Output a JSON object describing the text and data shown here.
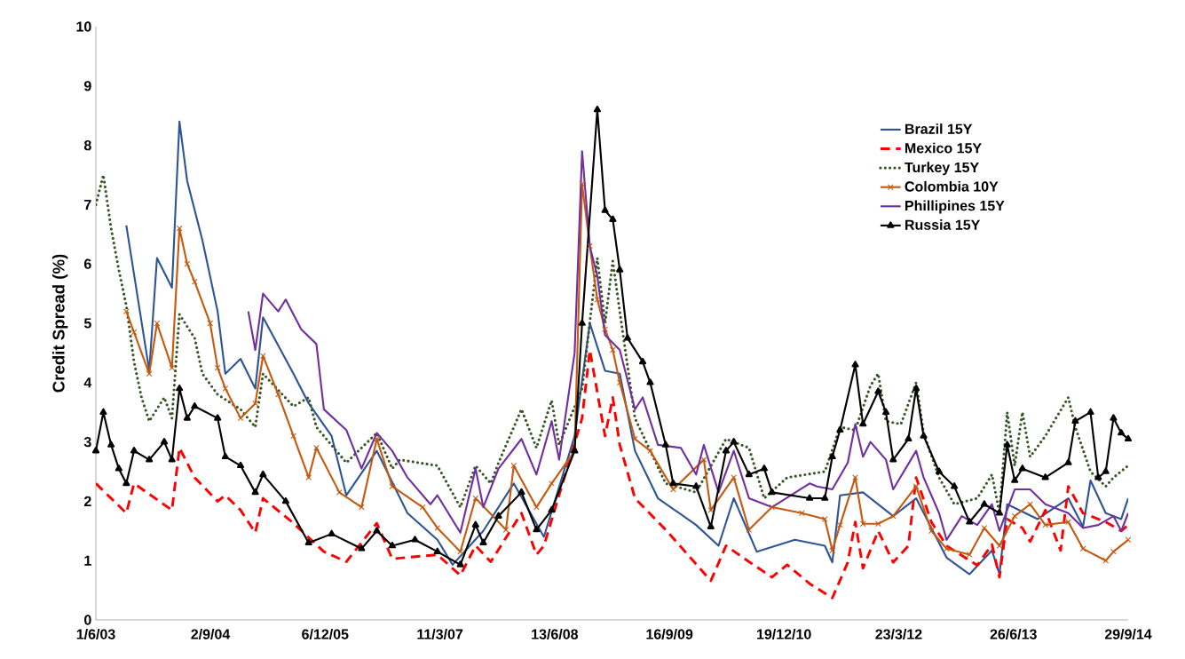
{
  "chart_data": {
    "type": "line",
    "ylabel": "Credit Spread (%)",
    "xlim": [
      "2003-06-01",
      "2014-09-29"
    ],
    "xticks": [
      {
        "value": "2003-06-01",
        "label": "1/6/03"
      },
      {
        "value": "2004-09-02",
        "label": "2/9/04"
      },
      {
        "value": "2005-12-06",
        "label": "6/12/05"
      },
      {
        "value": "2007-03-11",
        "label": "11/3/07"
      },
      {
        "value": "2008-06-13",
        "label": "13/6/08"
      },
      {
        "value": "2009-09-16",
        "label": "16/9/09"
      },
      {
        "value": "2010-12-19",
        "label": "19/12/10"
      },
      {
        "value": "2012-03-23",
        "label": "23/3/12"
      },
      {
        "value": "2013-06-26",
        "label": "26/6/13"
      },
      {
        "value": "2014-09-29",
        "label": "29/9/14"
      }
    ],
    "ylim": [
      0,
      10
    ],
    "yticks": [
      0,
      1,
      2,
      3,
      4,
      5,
      6,
      7,
      8,
      9,
      10
    ],
    "legend": "top right",
    "grid": false,
    "series": [
      {
        "name": "Brazil 15Y",
        "color": "#2f5597",
        "line_style": "solid",
        "marker": "none",
        "x": [
          "2003-10",
          "2004-01",
          "2004-02",
          "2004-04",
          "2004-05",
          "2004-06",
          "2004-08",
          "2004-10",
          "2004-11",
          "2005-01",
          "2005-03",
          "2005-04",
          "2005-08",
          "2005-10",
          "2006-01",
          "2006-03",
          "2006-07",
          "2006-11",
          "2007-03",
          "2007-05",
          "2007-09",
          "2008-01",
          "2008-05",
          "2008-09",
          "2008-11",
          "2009-01",
          "2009-03",
          "2009-05",
          "2009-08",
          "2010-01",
          "2010-04",
          "2010-06",
          "2010-09",
          "2011-02",
          "2011-06",
          "2011-07",
          "2011-08",
          "2011-11",
          "2012-03",
          "2012-06",
          "2012-10",
          "2013-01",
          "2013-04",
          "2013-05",
          "2013-06",
          "2013-10",
          "2014-02",
          "2014-04",
          "2014-05",
          "2014-07",
          "2014-09",
          "2014-09-29"
        ],
        "values": [
          6.65,
          4.2,
          6.1,
          5.6,
          8.4,
          7.4,
          6.4,
          5.2,
          4.15,
          4.4,
          3.9,
          5.1,
          4.15,
          3.65,
          3.1,
          2.1,
          2.85,
          1.8,
          1.35,
          0.93,
          1.5,
          2.3,
          1.4,
          3.1,
          5.0,
          4.2,
          4.15,
          2.85,
          2.05,
          1.6,
          1.25,
          2.05,
          1.15,
          1.35,
          1.25,
          0.97,
          2.1,
          2.15,
          1.75,
          2.05,
          1.05,
          0.77,
          1.17,
          0.77,
          1.95,
          1.7,
          2.05,
          1.57,
          2.35,
          1.8,
          1.7,
          2.05
        ]
      },
      {
        "name": "Mexico 15Y",
        "color": "#ff0000",
        "line_style": "dashed",
        "marker": "none",
        "x": [
          "2003-06",
          "2003-10",
          "2003-11",
          "2004-04",
          "2004-05",
          "2004-07",
          "2004-10",
          "2004-11",
          "2005-01",
          "2005-03",
          "2005-04",
          "2005-08",
          "2005-12",
          "2006-03",
          "2006-07",
          "2006-09",
          "2007-03",
          "2007-06",
          "2007-08",
          "2007-10",
          "2008-02",
          "2008-04",
          "2008-05",
          "2008-10",
          "2008-11",
          "2009-01",
          "2009-02",
          "2009-03",
          "2009-05",
          "2009-09",
          "2010-03",
          "2010-05",
          "2010-08",
          "2010-11",
          "2011-01",
          "2011-04",
          "2011-06",
          "2011-07",
          "2011-09",
          "2011-10",
          "2011-11",
          "2012-01",
          "2012-03",
          "2012-05",
          "2012-06",
          "2012-08",
          "2012-10",
          "2013-02",
          "2013-04",
          "2013-05",
          "2013-06",
          "2013-08",
          "2013-09",
          "2013-11",
          "2014-01",
          "2014-02",
          "2014-04",
          "2014-07",
          "2014-09",
          "2014-09-29"
        ],
        "values": [
          2.3,
          1.8,
          2.3,
          1.85,
          2.9,
          2.4,
          2.0,
          2.1,
          1.85,
          1.47,
          2.05,
          1.63,
          1.15,
          0.98,
          1.63,
          1.03,
          1.1,
          0.75,
          1.25,
          0.98,
          1.8,
          1.1,
          1.25,
          3.4,
          4.55,
          3.1,
          3.75,
          2.95,
          2.05,
          1.52,
          0.66,
          1.25,
          0.98,
          0.72,
          0.93,
          0.61,
          0.45,
          0.37,
          0.97,
          1.65,
          0.87,
          1.5,
          0.97,
          1.25,
          2.4,
          1.65,
          1.25,
          0.92,
          1.27,
          0.72,
          1.7,
          1.55,
          1.32,
          1.85,
          1.17,
          2.25,
          1.8,
          1.65,
          1.5,
          1.6
        ]
      },
      {
        "name": "Turkey 15Y",
        "color": "#375623",
        "line_style": "dotted",
        "marker": "none",
        "x": [
          "2003-06",
          "2003-07",
          "2003-08",
          "2003-09",
          "2003-10",
          "2003-11",
          "2003-12",
          "2004-01",
          "2004-03",
          "2004-04",
          "2004-05",
          "2004-07",
          "2004-08",
          "2004-10",
          "2005-01",
          "2005-03",
          "2005-04",
          "2005-08",
          "2005-10",
          "2005-11",
          "2006-03",
          "2006-07",
          "2006-09",
          "2006-10",
          "2007-03",
          "2007-06",
          "2007-08",
          "2007-10",
          "2007-11",
          "2008-02",
          "2008-04",
          "2008-06",
          "2008-07",
          "2008-10",
          "2008-12",
          "2009-01",
          "2009-02",
          "2009-03",
          "2009-05",
          "2009-09",
          "2010-01",
          "2010-05",
          "2010-08",
          "2010-10",
          "2011-01",
          "2011-06",
          "2011-08",
          "2011-10",
          "2011-12",
          "2012-01",
          "2012-02",
          "2012-04",
          "2012-06",
          "2012-07",
          "2012-09",
          "2012-11",
          "2013-02",
          "2013-04",
          "2013-05",
          "2013-06",
          "2013-07",
          "2013-08",
          "2013-09",
          "2013-11",
          "2014-02",
          "2014-03",
          "2014-05",
          "2014-07",
          "2014-08",
          "2014-09-29"
        ],
        "values": [
          7.0,
          7.5,
          6.6,
          5.9,
          5.3,
          4.35,
          3.75,
          3.35,
          3.75,
          3.4,
          5.15,
          4.75,
          4.15,
          3.8,
          3.55,
          3.25,
          4.15,
          3.6,
          3.75,
          3.25,
          2.65,
          3.15,
          2.55,
          2.7,
          2.6,
          1.9,
          2.6,
          2.3,
          2.65,
          3.55,
          2.9,
          3.7,
          2.95,
          3.9,
          6.1,
          5.0,
          6.05,
          5.2,
          3.4,
          2.3,
          2.15,
          3.05,
          2.9,
          2.05,
          2.4,
          2.5,
          3.25,
          3.2,
          3.95,
          4.15,
          3.35,
          3.3,
          4.0,
          3.15,
          2.4,
          1.95,
          2.05,
          2.45,
          1.8,
          3.5,
          2.6,
          3.5,
          2.75,
          3.1,
          3.75,
          3.25,
          2.5,
          2.25,
          2.4,
          2.6
        ]
      },
      {
        "name": "Colombia 10Y",
        "color": "#c55a11",
        "line_style": "solid",
        "marker": "cross",
        "x": [
          "2003-10",
          "2003-11",
          "2004-01",
          "2004-02",
          "2004-04",
          "2004-05",
          "2004-06",
          "2004-07",
          "2004-09",
          "2004-10",
          "2004-11",
          "2005-01",
          "2005-03",
          "2005-04",
          "2005-06",
          "2005-08",
          "2005-10",
          "2005-11",
          "2006-02",
          "2006-05",
          "2006-07",
          "2006-09",
          "2007-01",
          "2007-03",
          "2007-06",
          "2007-08",
          "2007-12",
          "2008-01",
          "2008-04",
          "2008-06",
          "2008-09",
          "2008-10",
          "2008-11",
          "2008-12",
          "2009-01",
          "2009-02",
          "2009-03",
          "2009-05",
          "2009-07",
          "2009-10",
          "2010-02",
          "2010-03",
          "2010-06",
          "2010-08",
          "2010-11",
          "2011-03",
          "2011-06",
          "2011-07",
          "2011-08",
          "2011-10",
          "2011-11",
          "2012-01",
          "2012-03",
          "2012-06",
          "2012-08",
          "2012-10",
          "2013-01",
          "2013-03",
          "2013-05",
          "2013-07",
          "2013-09",
          "2013-11",
          "2014-02",
          "2014-04",
          "2014-07",
          "2014-08",
          "2014-09-29"
        ],
        "values": [
          5.2,
          4.85,
          4.15,
          5.0,
          4.25,
          6.6,
          6.0,
          5.7,
          5.0,
          4.25,
          3.9,
          3.4,
          3.65,
          4.45,
          3.8,
          3.1,
          2.4,
          2.9,
          2.15,
          1.9,
          3.05,
          2.25,
          1.9,
          1.55,
          1.15,
          2.05,
          1.52,
          2.6,
          1.9,
          2.3,
          2.85,
          7.35,
          6.3,
          5.4,
          4.9,
          4.55,
          4.0,
          3.05,
          2.85,
          2.2,
          2.7,
          1.85,
          2.4,
          1.52,
          1.9,
          1.8,
          1.7,
          1.17,
          1.6,
          2.4,
          1.62,
          1.62,
          1.75,
          2.25,
          1.5,
          1.2,
          1.1,
          1.55,
          1.25,
          1.75,
          1.95,
          1.6,
          1.65,
          1.2,
          1.0,
          1.15,
          1.35
        ]
      },
      {
        "name": "Phillipines 15Y",
        "color": "#7030a0",
        "line_style": "solid",
        "marker": "none",
        "x": [
          "2005-02",
          "2005-03",
          "2005-04",
          "2005-06",
          "2005-07",
          "2005-09",
          "2005-11",
          "2005-12",
          "2006-03",
          "2006-05",
          "2006-07",
          "2006-09",
          "2006-11",
          "2007-02",
          "2007-03",
          "2007-06",
          "2007-08",
          "2007-09",
          "2007-11",
          "2008-02",
          "2008-04",
          "2008-06",
          "2008-07",
          "2008-09",
          "2008-10",
          "2008-11",
          "2008-12",
          "2009-01",
          "2009-03",
          "2009-05",
          "2009-06",
          "2009-08",
          "2009-11",
          "2010-01",
          "2010-02",
          "2010-04",
          "2010-06",
          "2010-08",
          "2010-11",
          "2011-04",
          "2011-05",
          "2011-07",
          "2011-09",
          "2011-10",
          "2011-11",
          "2011-12",
          "2012-02",
          "2012-03",
          "2012-06",
          "2012-07",
          "2012-09",
          "2012-10",
          "2012-12",
          "2013-02",
          "2013-04",
          "2013-05",
          "2013-07",
          "2013-09",
          "2013-11",
          "2014-02",
          "2014-04",
          "2014-06",
          "2014-08",
          "2014-09",
          "2014-09-29"
        ],
        "values": [
          5.2,
          4.55,
          5.5,
          5.2,
          5.4,
          4.9,
          4.65,
          3.55,
          3.2,
          2.55,
          3.15,
          2.85,
          2.4,
          1.95,
          2.1,
          1.47,
          2.55,
          1.9,
          2.55,
          3.05,
          2.45,
          3.35,
          2.7,
          4.5,
          7.9,
          6.3,
          5.8,
          4.8,
          4.55,
          3.55,
          3.75,
          2.95,
          2.9,
          2.45,
          2.95,
          2.15,
          2.85,
          2.05,
          1.9,
          2.3,
          2.25,
          2.2,
          2.65,
          3.3,
          2.75,
          3.0,
          2.7,
          2.2,
          2.85,
          2.4,
          1.8,
          1.35,
          1.75,
          1.6,
          1.95,
          1.5,
          2.2,
          2.2,
          1.95,
          1.8,
          1.55,
          1.6,
          1.75,
          1.5,
          1.8
        ]
      },
      {
        "name": "Russia 15Y",
        "color": "#000000",
        "line_style": "solid",
        "marker": "triangle",
        "x": [
          "2003-06",
          "2003-07",
          "2003-08",
          "2003-09",
          "2003-10",
          "2003-11",
          "2004-01",
          "2004-03",
          "2004-04",
          "2004-05",
          "2004-06",
          "2004-07",
          "2004-10",
          "2004-11",
          "2005-01",
          "2005-03",
          "2005-04",
          "2005-07",
          "2005-10",
          "2006-01",
          "2006-05",
          "2006-07",
          "2006-09",
          "2006-12",
          "2007-03",
          "2007-06",
          "2007-08",
          "2007-09",
          "2007-11",
          "2008-02",
          "2008-04",
          "2008-06",
          "2008-09",
          "2008-10",
          "2008-12",
          "2009-01",
          "2009-02",
          "2009-03",
          "2009-04",
          "2009-06",
          "2009-07",
          "2009-09",
          "2009-10",
          "2010-01",
          "2010-03",
          "2010-05",
          "2010-06",
          "2010-08",
          "2010-10",
          "2010-11",
          "2011-04",
          "2011-06",
          "2011-07",
          "2011-08",
          "2011-10",
          "2011-11",
          "2012-01",
          "2012-02",
          "2012-03",
          "2012-05",
          "2012-06",
          "2012-07",
          "2012-09",
          "2012-11",
          "2013-01",
          "2013-03",
          "2013-05",
          "2013-06",
          "2013-07",
          "2013-08",
          "2013-11",
          "2014-02",
          "2014-03",
          "2014-05",
          "2014-06",
          "2014-07",
          "2014-08",
          "2014-09",
          "2014-09-29"
        ],
        "values": [
          2.85,
          3.5,
          2.95,
          2.55,
          2.3,
          2.85,
          2.7,
          3.0,
          2.7,
          3.9,
          3.4,
          3.6,
          3.4,
          2.75,
          2.6,
          2.15,
          2.45,
          2.0,
          1.3,
          1.45,
          1.2,
          1.5,
          1.25,
          1.35,
          1.15,
          0.93,
          1.6,
          1.3,
          1.75,
          2.15,
          1.52,
          1.85,
          2.85,
          5.0,
          8.6,
          6.9,
          6.75,
          5.9,
          4.75,
          4.35,
          4.0,
          2.95,
          2.3,
          2.25,
          1.57,
          2.85,
          3.0,
          2.45,
          2.55,
          2.15,
          2.05,
          2.05,
          2.75,
          3.2,
          4.3,
          3.3,
          3.85,
          3.5,
          2.7,
          3.05,
          3.9,
          3.1,
          2.5,
          2.25,
          1.65,
          1.95,
          1.8,
          2.95,
          2.35,
          2.55,
          2.4,
          2.65,
          3.35,
          3.5,
          2.4,
          2.5,
          3.4,
          3.15,
          3.05
        ]
      }
    ]
  }
}
